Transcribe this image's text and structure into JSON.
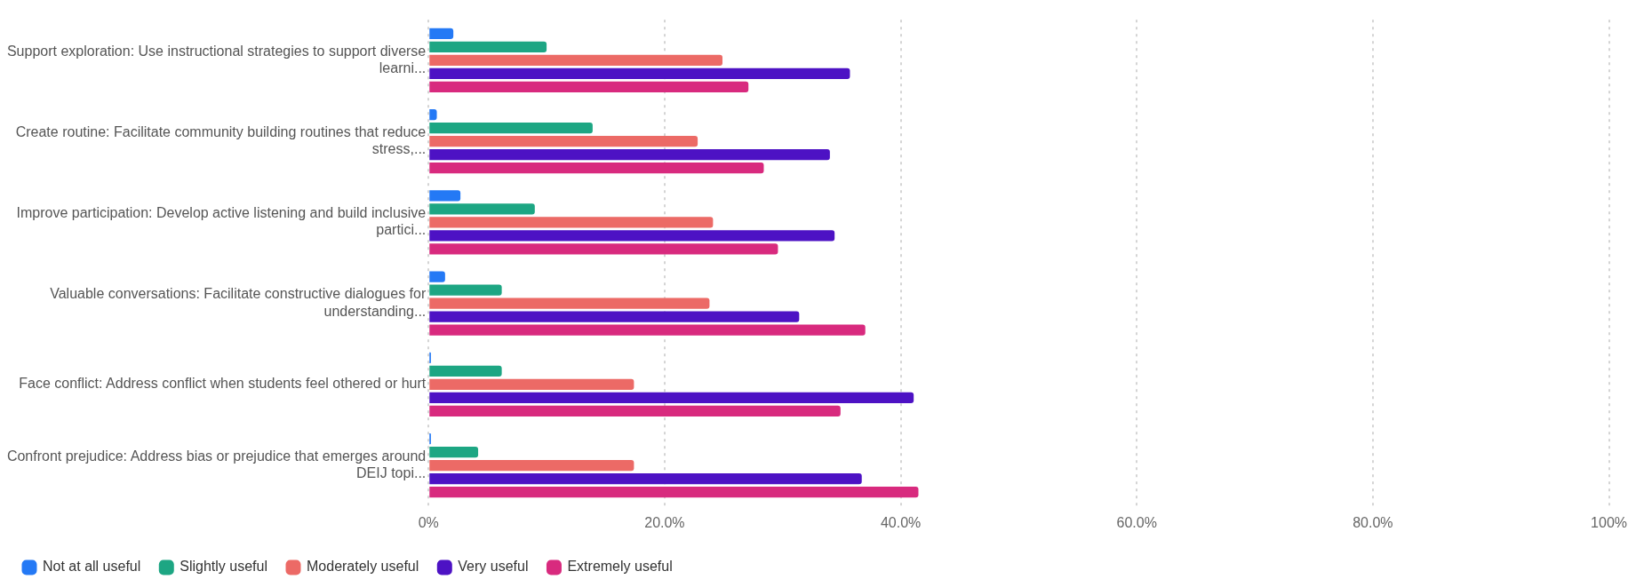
{
  "chart_data": {
    "type": "bar",
    "orientation": "horizontal",
    "categories": [
      "Support exploration: Use instructional strategies to support diverse\nlearni...",
      "Create routine: Facilitate community building routines that reduce\nstress,...",
      "Improve participation: Develop active listening and build inclusive\npartici...",
      "Valuable conversations: Facilitate constructive dialogues for\nunderstanding...",
      "Face conflict: Address conflict when students feel othered or hurt",
      "Confront prejudice: Address bias or prejudice that emerges around\nDEIJ topi..."
    ],
    "series": [
      {
        "name": "Not at all useful",
        "color": "#2479f5",
        "values": [
          2.1,
          0.7,
          2.7,
          1.4,
          0.2,
          0.2
        ]
      },
      {
        "name": "Slightly useful",
        "color": "#1da683",
        "values": [
          10.0,
          13.9,
          9.0,
          6.2,
          6.2,
          4.2
        ]
      },
      {
        "name": "Moderately useful",
        "color": "#ec6a66",
        "values": [
          24.9,
          22.8,
          24.1,
          23.8,
          17.4,
          17.4
        ]
      },
      {
        "name": "Very useful",
        "color": "#4d12c4",
        "values": [
          35.7,
          34.0,
          34.4,
          31.4,
          41.1,
          36.7
        ]
      },
      {
        "name": "Extremely useful",
        "color": "#d82a7e",
        "values": [
          27.1,
          28.4,
          29.6,
          37.0,
          34.9,
          41.5
        ]
      }
    ],
    "xlim": [
      0,
      100
    ],
    "xticks": [
      {
        "value": 0,
        "label": "0%"
      },
      {
        "value": 20,
        "label": "20.0%"
      },
      {
        "value": 40,
        "label": "40.0%"
      },
      {
        "value": 60,
        "label": "60.0%"
      },
      {
        "value": 80,
        "label": "80.0%"
      },
      {
        "value": 100,
        "label": "100%"
      }
    ],
    "grid": "x",
    "legend": "bottom left"
  }
}
